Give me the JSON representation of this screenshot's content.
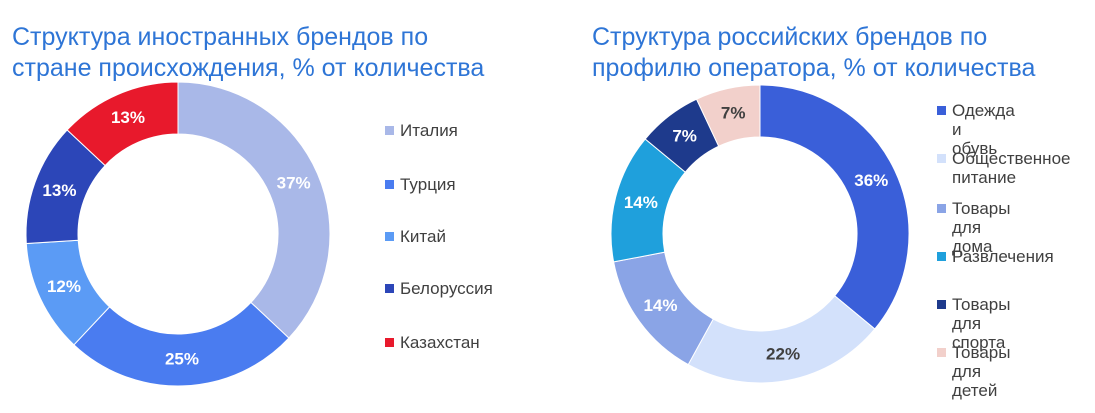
{
  "chart_data": [
    {
      "type": "pie",
      "variant": "donut",
      "title": "Структура иностранных брендов по\nстране происхождения, % от количества",
      "categories": [
        "Италия",
        "Турция",
        "Китай",
        "Белоруссия",
        "Казахстан"
      ],
      "values": [
        37,
        25,
        12,
        13,
        13
      ],
      "labels": [
        "37%",
        "25%",
        "12%",
        "13%",
        "13%"
      ],
      "colors": [
        "#a9b8e8",
        "#4a7cf0",
        "#5b9bf5",
        "#2c46b8",
        "#e8192c"
      ],
      "label_colors": [
        "#ffffff",
        "#ffffff",
        "#ffffff",
        "#ffffff",
        "#ffffff"
      ],
      "legend_position": "right"
    },
    {
      "type": "pie",
      "variant": "donut",
      "title": "Структура российских брендов по\nпрофилю оператора, % от количества",
      "categories": [
        "Одежда и\nобувь",
        "Общественное\nпитание",
        "Товары для\nдома",
        "Развлечения",
        "Товары для\nспорта",
        "Товары для\nдетей"
      ],
      "values": [
        36,
        22,
        14,
        14,
        7,
        7
      ],
      "labels": [
        "36%",
        "22%",
        "14%",
        "14%",
        "7%",
        "7%"
      ],
      "colors": [
        "#3a5fd9",
        "#d3e1fb",
        "#8aa4e6",
        "#1fa0dc",
        "#1e3a8c",
        "#f2d0cb"
      ],
      "label_colors": [
        "#ffffff",
        "#404040",
        "#ffffff",
        "#ffffff",
        "#ffffff",
        "#404040"
      ],
      "legend_position": "right"
    }
  ]
}
